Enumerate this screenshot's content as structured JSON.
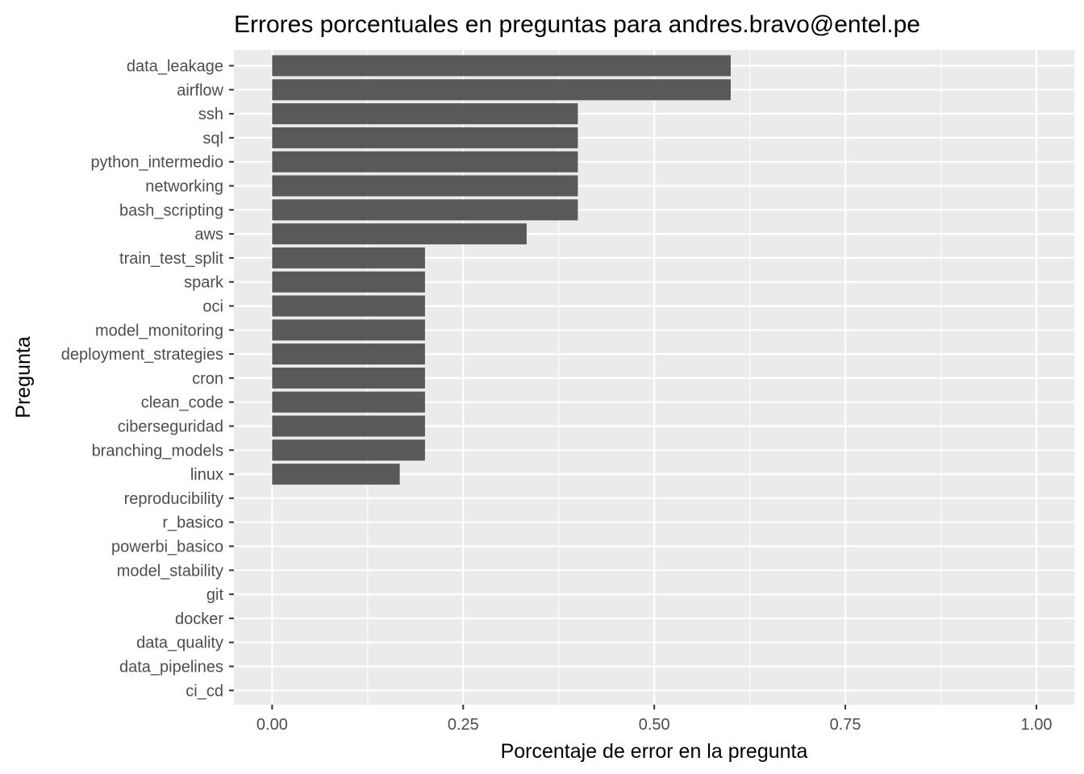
{
  "chart_data": {
    "type": "bar",
    "orientation": "horizontal",
    "title": "Errores porcentuales en preguntas para andres.bravo@entel.pe",
    "xlabel": "Porcentaje de error en la pregunta",
    "ylabel": "Pregunta",
    "xlim": [
      0,
      1
    ],
    "x_ticks": [
      "0.00",
      "0.25",
      "0.50",
      "0.75",
      "1.00"
    ],
    "x_tick_values": [
      0,
      0.25,
      0.5,
      0.75,
      1.0
    ],
    "grid": true,
    "categories": [
      "data_leakage",
      "airflow",
      "ssh",
      "sql",
      "python_intermedio",
      "networking",
      "bash_scripting",
      "aws",
      "train_test_split",
      "spark",
      "oci",
      "model_monitoring",
      "deployment_strategies",
      "cron",
      "clean_code",
      "ciberseguridad",
      "branching_models",
      "linux",
      "reproducibility",
      "r_basico",
      "powerbi_basico",
      "model_stability",
      "git",
      "docker",
      "data_quality",
      "data_pipelines",
      "ci_cd"
    ],
    "values": [
      0.6,
      0.6,
      0.4,
      0.4,
      0.4,
      0.4,
      0.4,
      0.333,
      0.2,
      0.2,
      0.2,
      0.2,
      0.2,
      0.2,
      0.2,
      0.2,
      0.2,
      0.167,
      0,
      0,
      0,
      0,
      0,
      0,
      0,
      0,
      0
    ],
    "colors": {
      "bar": "#595959",
      "panel": "#ebebeb",
      "grid": "#ffffff",
      "tick_text": "#4d4d4d",
      "tick_mark": "#333333"
    }
  }
}
